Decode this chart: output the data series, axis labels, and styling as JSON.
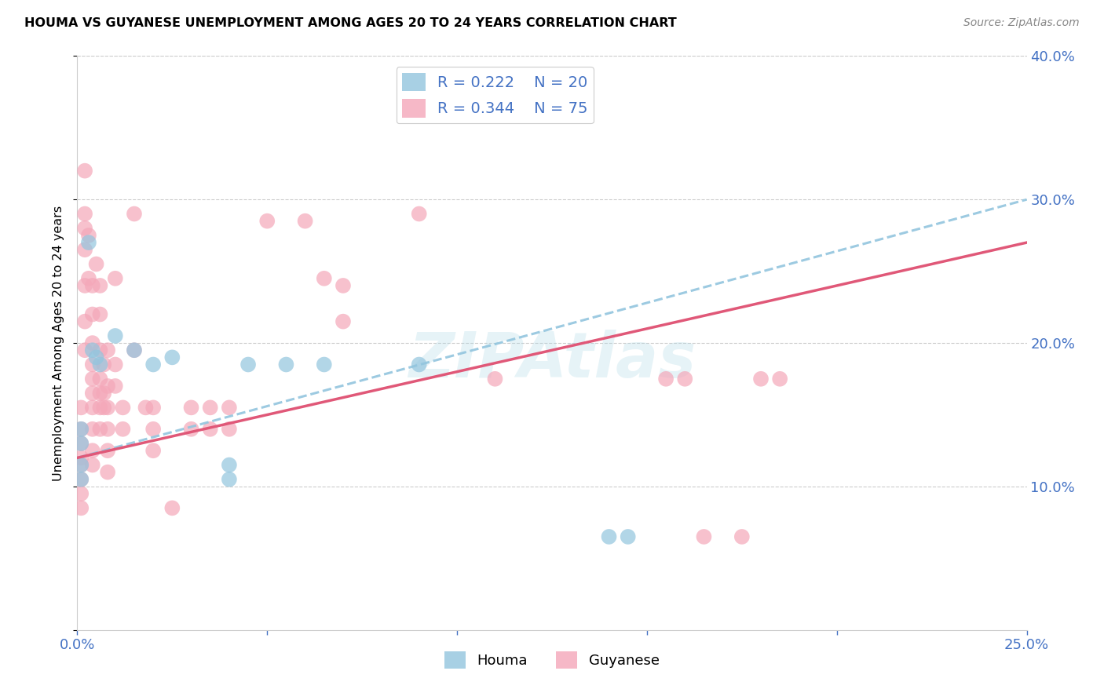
{
  "title": "HOUMA VS GUYANESE UNEMPLOYMENT AMONG AGES 20 TO 24 YEARS CORRELATION CHART",
  "source": "Source: ZipAtlas.com",
  "ylabel": "Unemployment Among Ages 20 to 24 years",
  "xlim": [
    0.0,
    0.25
  ],
  "ylim": [
    0.0,
    0.4
  ],
  "xticks": [
    0.0,
    0.05,
    0.1,
    0.15,
    0.2,
    0.25
  ],
  "yticks": [
    0.0,
    0.1,
    0.2,
    0.3,
    0.4
  ],
  "xtick_labels": [
    "0.0%",
    "",
    "",
    "",
    "",
    "25.0%"
  ],
  "ytick_labels": [
    "",
    "10.0%",
    "20.0%",
    "30.0%",
    "40.0%"
  ],
  "houma_R": 0.222,
  "houma_N": 20,
  "guyanese_R": 0.344,
  "guyanese_N": 75,
  "houma_color": "#92c5de",
  "guyanese_color": "#f4a7b9",
  "trend_houma_color": "#92c5de",
  "trend_guyanese_color": "#e05878",
  "axis_color": "#4472c4",
  "grid_color": "#cccccc",
  "watermark": "ZIPAtlas",
  "houma_points": [
    [
      0.001,
      0.14
    ],
    [
      0.001,
      0.13
    ],
    [
      0.001,
      0.115
    ],
    [
      0.001,
      0.105
    ],
    [
      0.003,
      0.27
    ],
    [
      0.004,
      0.195
    ],
    [
      0.005,
      0.19
    ],
    [
      0.006,
      0.185
    ],
    [
      0.01,
      0.205
    ],
    [
      0.015,
      0.195
    ],
    [
      0.02,
      0.185
    ],
    [
      0.025,
      0.19
    ],
    [
      0.04,
      0.115
    ],
    [
      0.04,
      0.105
    ],
    [
      0.045,
      0.185
    ],
    [
      0.055,
      0.185
    ],
    [
      0.065,
      0.185
    ],
    [
      0.09,
      0.185
    ],
    [
      0.14,
      0.065
    ],
    [
      0.145,
      0.065
    ]
  ],
  "guyanese_points": [
    [
      0.001,
      0.155
    ],
    [
      0.001,
      0.14
    ],
    [
      0.001,
      0.13
    ],
    [
      0.001,
      0.12
    ],
    [
      0.001,
      0.115
    ],
    [
      0.001,
      0.105
    ],
    [
      0.001,
      0.095
    ],
    [
      0.001,
      0.085
    ],
    [
      0.002,
      0.32
    ],
    [
      0.002,
      0.29
    ],
    [
      0.002,
      0.28
    ],
    [
      0.002,
      0.265
    ],
    [
      0.002,
      0.24
    ],
    [
      0.002,
      0.215
    ],
    [
      0.002,
      0.195
    ],
    [
      0.003,
      0.275
    ],
    [
      0.003,
      0.245
    ],
    [
      0.004,
      0.24
    ],
    [
      0.004,
      0.22
    ],
    [
      0.004,
      0.2
    ],
    [
      0.004,
      0.185
    ],
    [
      0.004,
      0.175
    ],
    [
      0.004,
      0.165
    ],
    [
      0.004,
      0.155
    ],
    [
      0.004,
      0.14
    ],
    [
      0.004,
      0.125
    ],
    [
      0.004,
      0.115
    ],
    [
      0.005,
      0.255
    ],
    [
      0.006,
      0.24
    ],
    [
      0.006,
      0.22
    ],
    [
      0.006,
      0.195
    ],
    [
      0.006,
      0.175
    ],
    [
      0.006,
      0.165
    ],
    [
      0.006,
      0.155
    ],
    [
      0.006,
      0.14
    ],
    [
      0.007,
      0.185
    ],
    [
      0.007,
      0.165
    ],
    [
      0.007,
      0.155
    ],
    [
      0.008,
      0.195
    ],
    [
      0.008,
      0.17
    ],
    [
      0.008,
      0.155
    ],
    [
      0.008,
      0.14
    ],
    [
      0.008,
      0.125
    ],
    [
      0.008,
      0.11
    ],
    [
      0.01,
      0.245
    ],
    [
      0.01,
      0.185
    ],
    [
      0.01,
      0.17
    ],
    [
      0.012,
      0.155
    ],
    [
      0.012,
      0.14
    ],
    [
      0.015,
      0.29
    ],
    [
      0.015,
      0.195
    ],
    [
      0.018,
      0.155
    ],
    [
      0.02,
      0.155
    ],
    [
      0.02,
      0.14
    ],
    [
      0.02,
      0.125
    ],
    [
      0.025,
      0.085
    ],
    [
      0.03,
      0.155
    ],
    [
      0.03,
      0.14
    ],
    [
      0.035,
      0.155
    ],
    [
      0.035,
      0.14
    ],
    [
      0.04,
      0.155
    ],
    [
      0.04,
      0.14
    ],
    [
      0.05,
      0.285
    ],
    [
      0.06,
      0.285
    ],
    [
      0.065,
      0.245
    ],
    [
      0.07,
      0.24
    ],
    [
      0.07,
      0.215
    ],
    [
      0.09,
      0.29
    ],
    [
      0.11,
      0.175
    ],
    [
      0.155,
      0.175
    ],
    [
      0.16,
      0.175
    ],
    [
      0.165,
      0.065
    ],
    [
      0.175,
      0.065
    ],
    [
      0.18,
      0.175
    ],
    [
      0.185,
      0.175
    ]
  ]
}
